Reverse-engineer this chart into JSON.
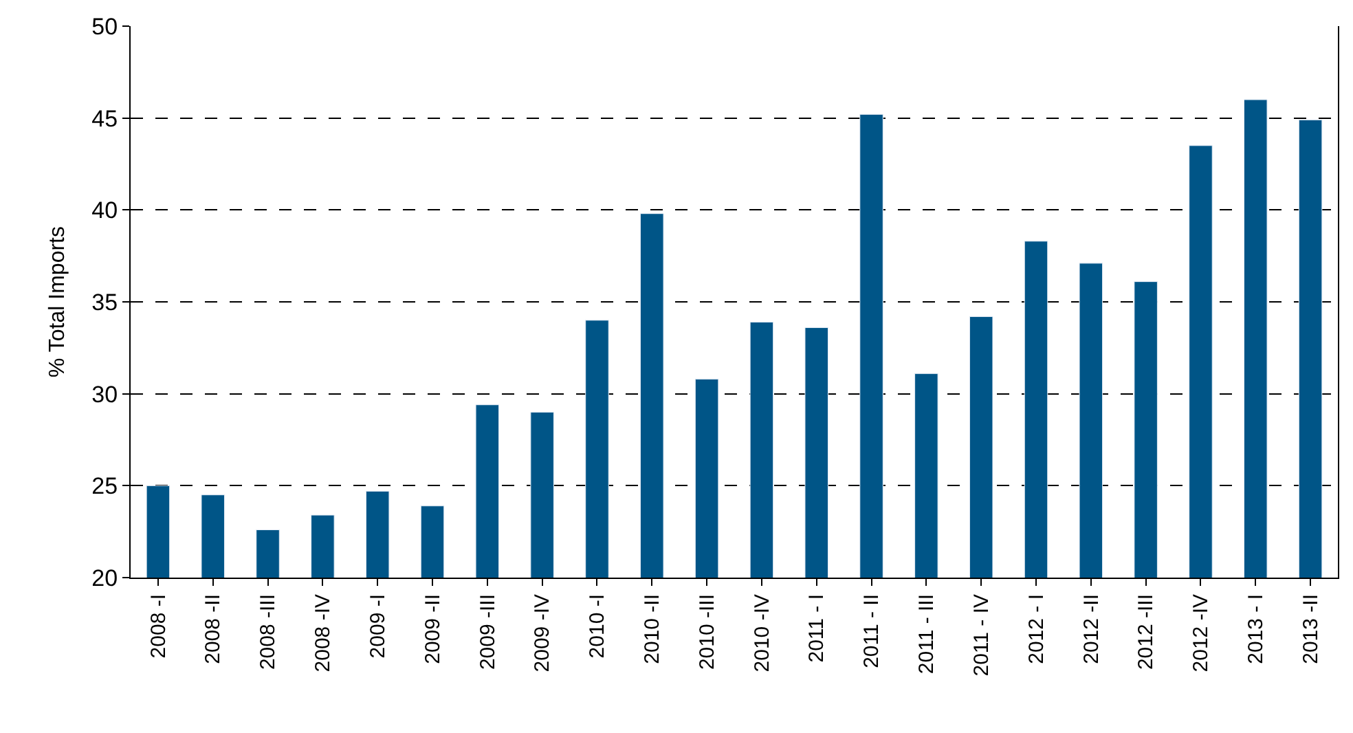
{
  "chart_data": {
    "type": "bar",
    "ylabel": "% Total Imports",
    "categories": [
      "2008 -I",
      "2008 -II",
      "2008 -III",
      "2008 -IV",
      "2009 -I",
      "2009 -II",
      "2009 -III",
      "2009 -IV",
      "2010 -I",
      "2010 -II",
      "2010 -III",
      "2010 -IV",
      "2011 - I",
      "2011 - II",
      "2011 - III",
      "2011 - IV",
      "2012 - I",
      "2012 -II",
      "2012 -III",
      "2012 -IV",
      "2013 - I",
      "2013 -II"
    ],
    "series": [
      {
        "color": "#005587",
        "values": [
          25.0,
          24.5,
          22.6,
          23.4,
          24.7,
          23.9,
          29.4,
          29.0,
          34.0,
          39.8,
          30.8,
          33.9,
          33.6,
          45.2,
          31.1,
          34.2,
          38.3,
          37.1,
          36.1,
          43.5,
          46.0,
          44.9
        ]
      }
    ],
    "ylim": [
      20,
      50
    ],
    "yticks": [
      20,
      25,
      30,
      35,
      40,
      45,
      50
    ],
    "grid": "y"
  }
}
